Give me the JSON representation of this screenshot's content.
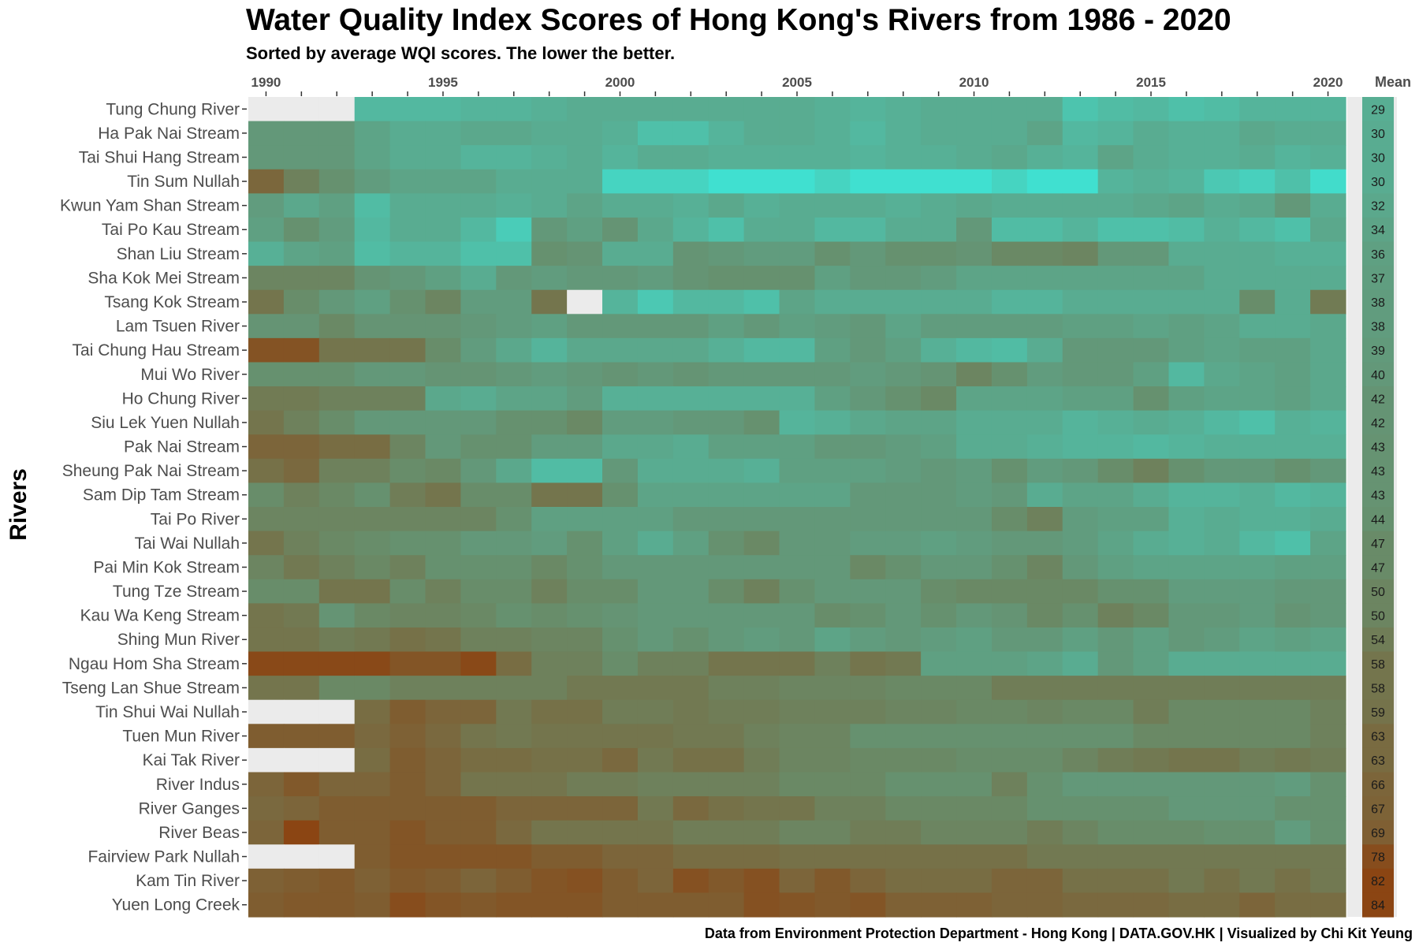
{
  "chart_data": {
    "type": "heatmap",
    "title": "Water Quality Index Scores of Hong Kong's Rivers from 1986 - 2020",
    "subtitle": "Sorted by average WQI scores.  The lower the better.",
    "ylabel": "Rivers",
    "caption": "Data from Environment Protection Department - Hong Kong | DATA.GOV.HK | Visualized by Chi Kit Yeung",
    "mean_header": "Mean",
    "years": [
      1990,
      1991,
      1992,
      1993,
      1994,
      1995,
      1996,
      1997,
      1998,
      1999,
      2000,
      2001,
      2002,
      2003,
      2004,
      2005,
      2006,
      2007,
      2008,
      2009,
      2010,
      2011,
      2012,
      2013,
      2014,
      2015,
      2016,
      2017,
      2018,
      2019,
      2020
    ],
    "year_tick_labels": [
      "1990",
      "1995",
      "2000",
      "2005",
      "2010",
      "2015",
      "2020"
    ],
    "color_scale": {
      "low": "#40e0d0",
      "high": "#8b4513",
      "missing": "#ebebeb",
      "mean_background": "#ebebeb"
    },
    "rivers": [
      {
        "name": "Tung Chung River",
        "mean": 29,
        "values": [
          null,
          null,
          null,
          24,
          24,
          24,
          26,
          26,
          28,
          30,
          30,
          30,
          30,
          30,
          30,
          30,
          28,
          26,
          28,
          30,
          30,
          30,
          30,
          18,
          22,
          24,
          20,
          22,
          26,
          26,
          26
        ]
      },
      {
        "name": "Ha Pak Nai Stream",
        "mean": 30,
        "values": [
          40,
          40,
          40,
          34,
          30,
          30,
          32,
          32,
          30,
          30,
          28,
          20,
          20,
          26,
          30,
          30,
          28,
          24,
          28,
          30,
          30,
          30,
          34,
          24,
          26,
          30,
          28,
          28,
          32,
          30,
          30
        ]
      },
      {
        "name": "Tai Shui Hang Stream",
        "mean": 30,
        "values": [
          40,
          40,
          40,
          34,
          30,
          30,
          26,
          26,
          28,
          30,
          26,
          30,
          30,
          28,
          28,
          28,
          28,
          26,
          28,
          28,
          30,
          32,
          28,
          26,
          34,
          30,
          28,
          28,
          30,
          26,
          28
        ]
      },
      {
        "name": "Tin Sum Nullah",
        "mean": 30,
        "values": [
          65,
          52,
          44,
          38,
          34,
          34,
          34,
          30,
          30,
          30,
          10,
          10,
          10,
          4,
          4,
          4,
          10,
          4,
          4,
          4,
          4,
          10,
          4,
          4,
          26,
          28,
          26,
          16,
          12,
          20,
          6
        ]
      },
      {
        "name": "Kwun Yam Shan Stream",
        "mean": 32,
        "values": [
          38,
          32,
          36,
          22,
          30,
          30,
          30,
          28,
          30,
          34,
          30,
          30,
          28,
          32,
          28,
          30,
          30,
          30,
          28,
          30,
          32,
          30,
          30,
          30,
          30,
          32,
          34,
          30,
          32,
          40,
          30
        ]
      },
      {
        "name": "Tai Po Kau Stream",
        "mean": 34,
        "values": [
          36,
          44,
          38,
          24,
          30,
          30,
          24,
          14,
          40,
          36,
          42,
          32,
          26,
          20,
          30,
          30,
          24,
          24,
          30,
          30,
          40,
          22,
          22,
          26,
          20,
          20,
          22,
          28,
          24,
          20,
          32
        ]
      },
      {
        "name": "Shan Liu Stream",
        "mean": 36,
        "values": [
          28,
          34,
          36,
          22,
          26,
          26,
          20,
          20,
          44,
          42,
          30,
          30,
          42,
          40,
          38,
          38,
          44,
          40,
          44,
          44,
          42,
          48,
          48,
          50,
          40,
          40,
          30,
          30,
          30,
          28,
          28
        ]
      },
      {
        "name": "Sha Kok Mei Stream",
        "mean": 37,
        "values": [
          50,
          50,
          50,
          42,
          40,
          36,
          30,
          40,
          38,
          40,
          40,
          38,
          42,
          44,
          44,
          44,
          36,
          40,
          40,
          38,
          34,
          34,
          34,
          34,
          34,
          34,
          34,
          30,
          30,
          30,
          30
        ]
      },
      {
        "name": "Tsang Kok Stream",
        "mean": 38,
        "values": [
          58,
          46,
          40,
          36,
          44,
          50,
          38,
          38,
          58,
          null,
          26,
          16,
          24,
          24,
          20,
          34,
          30,
          30,
          30,
          30,
          30,
          26,
          26,
          30,
          30,
          30,
          30,
          30,
          46,
          30,
          55
        ]
      },
      {
        "name": "Lam Tsuen River",
        "mean": 38,
        "values": [
          42,
          42,
          48,
          42,
          42,
          42,
          40,
          38,
          36,
          40,
          40,
          40,
          40,
          36,
          40,
          36,
          38,
          40,
          34,
          38,
          38,
          38,
          38,
          36,
          36,
          34,
          36,
          34,
          30,
          30,
          32
        ]
      },
      {
        "name": "Tai Chung Hau Stream",
        "mean": 39,
        "values": [
          75,
          75,
          58,
          58,
          58,
          46,
          38,
          32,
          26,
          32,
          32,
          32,
          32,
          28,
          24,
          24,
          36,
          40,
          36,
          28,
          24,
          22,
          30,
          40,
          40,
          40,
          36,
          34,
          36,
          36,
          32
        ]
      },
      {
        "name": "Mui Wo River",
        "mean": 40,
        "values": [
          44,
          44,
          44,
          40,
          40,
          42,
          42,
          40,
          38,
          40,
          42,
          40,
          42,
          40,
          40,
          40,
          40,
          38,
          40,
          42,
          50,
          44,
          38,
          40,
          40,
          36,
          24,
          32,
          34,
          36,
          32
        ]
      },
      {
        "name": "Ho Chung River",
        "mean": 42,
        "values": [
          55,
          55,
          52,
          52,
          52,
          32,
          30,
          34,
          34,
          38,
          28,
          28,
          28,
          28,
          28,
          28,
          36,
          40,
          44,
          48,
          34,
          34,
          34,
          36,
          36,
          44,
          36,
          34,
          34,
          36,
          32
        ]
      },
      {
        "name": "Siu Lek Yuen Nullah",
        "mean": 42,
        "values": [
          58,
          52,
          46,
          40,
          40,
          40,
          40,
          44,
          44,
          48,
          38,
          38,
          40,
          40,
          44,
          26,
          28,
          32,
          34,
          34,
          30,
          30,
          30,
          26,
          28,
          30,
          28,
          24,
          20,
          28,
          26
        ]
      },
      {
        "name": "Pak Nai Stream",
        "mean": 43,
        "values": [
          66,
          66,
          62,
          62,
          50,
          40,
          44,
          44,
          38,
          38,
          32,
          32,
          30,
          36,
          36,
          36,
          40,
          40,
          38,
          36,
          30,
          30,
          28,
          26,
          26,
          24,
          26,
          28,
          28,
          28,
          28
        ]
      },
      {
        "name": "Sheung Pak Nai Stream",
        "mean": 43,
        "values": [
          60,
          64,
          52,
          52,
          46,
          48,
          40,
          32,
          22,
          22,
          40,
          30,
          30,
          30,
          28,
          36,
          36,
          36,
          38,
          40,
          38,
          44,
          38,
          40,
          46,
          52,
          44,
          40,
          40,
          44,
          40
        ]
      },
      {
        "name": "Sam Dip Tam Stream",
        "mean": 43,
        "values": [
          46,
          52,
          48,
          44,
          54,
          58,
          46,
          46,
          58,
          58,
          44,
          34,
          34,
          34,
          34,
          34,
          34,
          40,
          40,
          40,
          38,
          40,
          30,
          34,
          34,
          30,
          26,
          26,
          28,
          24,
          26
        ]
      },
      {
        "name": "Tai Po River",
        "mean": 44,
        "values": [
          50,
          50,
          50,
          50,
          50,
          50,
          50,
          44,
          36,
          36,
          36,
          36,
          40,
          40,
          40,
          40,
          40,
          40,
          40,
          40,
          40,
          46,
          52,
          38,
          36,
          36,
          28,
          30,
          28,
          28,
          30
        ]
      },
      {
        "name": "Tai Wai Nullah",
        "mean": 47,
        "values": [
          58,
          52,
          48,
          46,
          44,
          44,
          40,
          40,
          38,
          44,
          36,
          30,
          36,
          44,
          48,
          40,
          40,
          38,
          38,
          36,
          38,
          40,
          40,
          38,
          34,
          30,
          28,
          30,
          24,
          20,
          34
        ]
      },
      {
        "name": "Pai Min Kok Stream",
        "mean": 47,
        "values": [
          50,
          56,
          52,
          48,
          52,
          44,
          44,
          44,
          48,
          44,
          40,
          40,
          40,
          40,
          40,
          40,
          40,
          48,
          44,
          40,
          40,
          44,
          50,
          40,
          36,
          34,
          34,
          34,
          34,
          36,
          36
        ]
      },
      {
        "name": "Tung Tze Stream",
        "mean": 50,
        "values": [
          46,
          46,
          58,
          58,
          46,
          52,
          46,
          46,
          52,
          46,
          46,
          40,
          40,
          46,
          52,
          44,
          40,
          40,
          40,
          46,
          48,
          48,
          48,
          48,
          44,
          44,
          38,
          38,
          38,
          40,
          40
        ]
      },
      {
        "name": "Kau Wa Keng Stream",
        "mean": 50,
        "values": [
          58,
          56,
          42,
          48,
          50,
          50,
          48,
          44,
          46,
          44,
          42,
          40,
          40,
          40,
          40,
          40,
          46,
          44,
          40,
          44,
          40,
          42,
          48,
          44,
          52,
          48,
          40,
          40,
          38,
          42,
          40
        ]
      },
      {
        "name": "Shing Mun River",
        "mean": 54,
        "values": [
          58,
          58,
          54,
          56,
          60,
          58,
          52,
          52,
          50,
          50,
          44,
          40,
          44,
          40,
          38,
          40,
          34,
          38,
          40,
          38,
          36,
          40,
          40,
          36,
          40,
          36,
          40,
          38,
          34,
          36,
          34
        ]
      },
      {
        "name": "Ngau Hom Sha Stream",
        "mean": 58,
        "values": [
          80,
          80,
          80,
          80,
          74,
          74,
          80,
          62,
          52,
          52,
          46,
          52,
          52,
          58,
          58,
          58,
          52,
          58,
          56,
          36,
          36,
          36,
          34,
          30,
          40,
          36,
          30,
          30,
          30,
          30,
          30
        ]
      },
      {
        "name": "Tseng Lan Shue Stream",
        "mean": 58,
        "values": [
          58,
          58,
          48,
          48,
          52,
          52,
          52,
          52,
          52,
          56,
          56,
          56,
          56,
          52,
          52,
          50,
          50,
          50,
          48,
          48,
          48,
          54,
          54,
          54,
          54,
          54,
          54,
          54,
          54,
          54,
          54
        ]
      },
      {
        "name": "Tin Shui Wai Nullah",
        "mean": 59,
        "values": [
          null,
          null,
          null,
          62,
          70,
          66,
          66,
          56,
          60,
          60,
          54,
          54,
          56,
          54,
          54,
          52,
          52,
          52,
          50,
          50,
          48,
          48,
          50,
          48,
          48,
          54,
          48,
          48,
          48,
          48,
          52
        ]
      },
      {
        "name": "Tuen Mun River",
        "mean": 63,
        "values": [
          70,
          70,
          70,
          64,
          68,
          64,
          58,
          56,
          58,
          58,
          58,
          58,
          56,
          56,
          52,
          50,
          50,
          44,
          44,
          44,
          44,
          44,
          44,
          44,
          44,
          48,
          48,
          48,
          48,
          48,
          52
        ]
      },
      {
        "name": "Kai Tak River",
        "mean": 63,
        "values": [
          null,
          null,
          null,
          62,
          70,
          66,
          62,
          62,
          60,
          60,
          64,
          56,
          60,
          60,
          54,
          50,
          50,
          48,
          48,
          48,
          46,
          46,
          46,
          50,
          54,
          56,
          58,
          58,
          54,
          56,
          54
        ]
      },
      {
        "name": "River Indus",
        "mean": 66,
        "values": [
          66,
          72,
          66,
          66,
          70,
          66,
          58,
          58,
          58,
          54,
          54,
          52,
          52,
          52,
          52,
          48,
          48,
          48,
          44,
          44,
          44,
          52,
          44,
          40,
          40,
          40,
          40,
          40,
          40,
          38,
          44
        ]
      },
      {
        "name": "River Ganges",
        "mean": 67,
        "values": [
          64,
          66,
          70,
          70,
          70,
          70,
          70,
          66,
          66,
          66,
          66,
          56,
          64,
          60,
          58,
          58,
          52,
          52,
          48,
          48,
          48,
          48,
          44,
          44,
          44,
          44,
          40,
          40,
          40,
          44,
          44
        ]
      },
      {
        "name": "River Beas",
        "mean": 69,
        "values": [
          66,
          82,
          70,
          70,
          74,
          70,
          70,
          64,
          58,
          58,
          58,
          58,
          54,
          54,
          54,
          50,
          50,
          54,
          54,
          50,
          50,
          50,
          54,
          50,
          46,
          46,
          46,
          44,
          44,
          38,
          44
        ]
      },
      {
        "name": "Fairview Park Nullah",
        "mean": 78,
        "values": [
          null,
          null,
          null,
          70,
          74,
          74,
          74,
          74,
          70,
          70,
          66,
          66,
          62,
          62,
          62,
          60,
          60,
          60,
          60,
          60,
          60,
          60,
          56,
          56,
          56,
          56,
          56,
          56,
          56,
          56,
          56
        ]
      },
      {
        "name": "Kam Tin River",
        "mean": 82,
        "values": [
          68,
          70,
          72,
          68,
          72,
          70,
          66,
          70,
          74,
          76,
          70,
          66,
          76,
          72,
          76,
          66,
          72,
          66,
          62,
          62,
          62,
          66,
          66,
          60,
          60,
          60,
          56,
          60,
          56,
          60,
          56
        ]
      },
      {
        "name": "Yuen Long Creek",
        "mean": 84,
        "values": [
          70,
          72,
          72,
          70,
          78,
          74,
          72,
          74,
          74,
          74,
          70,
          70,
          70,
          70,
          76,
          74,
          72,
          74,
          68,
          68,
          68,
          66,
          66,
          64,
          64,
          64,
          62,
          62,
          66,
          62,
          62
        ]
      }
    ]
  }
}
